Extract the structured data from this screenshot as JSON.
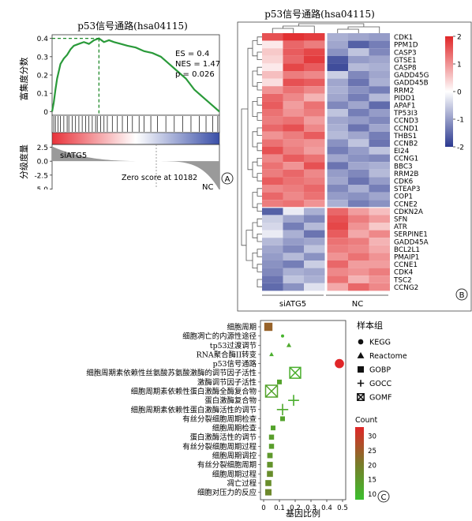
{
  "chart_data": [
    {
      "type": "line",
      "panel_label": "A",
      "title": "p53信号通路(hsa04115)",
      "ylabel_top": "富集度分数",
      "ylabel_bottom": "分级度量",
      "y_ticks_top": [
        "0.4",
        "0.3",
        "0.2",
        "0.1",
        "0"
      ],
      "y_ticks_bottom": [
        "2.5",
        "0.0",
        "-2.5",
        "-5.0"
      ],
      "ylim_top": [
        -0.02,
        0.42
      ],
      "ylim_bottom": [
        -5.5,
        3
      ],
      "stats": {
        "es": "ES = 0.4",
        "nes": "NES = 1.47",
        "p": "p = 0.026"
      },
      "group_left": "siATG5",
      "group_right": "NC",
      "zero_score_label": "Zero score at 10182",
      "colors": {
        "curve": "#2a9a3a",
        "peak": "#1f8a2a",
        "red": "#e8323a",
        "blue": "#3a4fa8"
      },
      "running_es": [
        [
          0,
          0
        ],
        [
          0.01,
          0.05
        ],
        [
          0.02,
          0.12
        ],
        [
          0.03,
          0.18
        ],
        [
          0.04,
          0.22
        ],
        [
          0.05,
          0.26
        ],
        [
          0.07,
          0.29
        ],
        [
          0.09,
          0.31
        ],
        [
          0.11,
          0.34
        ],
        [
          0.13,
          0.36
        ],
        [
          0.16,
          0.37
        ],
        [
          0.19,
          0.38
        ],
        [
          0.22,
          0.37
        ],
        [
          0.25,
          0.39
        ],
        [
          0.28,
          0.4
        ],
        [
          0.31,
          0.38
        ],
        [
          0.34,
          0.39
        ],
        [
          0.37,
          0.38
        ],
        [
          0.41,
          0.37
        ],
        [
          0.45,
          0.36
        ],
        [
          0.5,
          0.35
        ],
        [
          0.55,
          0.33
        ],
        [
          0.6,
          0.32
        ],
        [
          0.65,
          0.3
        ],
        [
          0.7,
          0.26
        ],
        [
          0.75,
          0.22
        ],
        [
          0.8,
          0.18
        ],
        [
          0.85,
          0.12
        ],
        [
          0.9,
          0.08
        ],
        [
          0.95,
          0.04
        ],
        [
          1.0,
          0.0
        ]
      ],
      "peak_x": 0.28,
      "hits": [
        0.01,
        0.02,
        0.035,
        0.05,
        0.07,
        0.09,
        0.1,
        0.12,
        0.14,
        0.16,
        0.18,
        0.2,
        0.22,
        0.24,
        0.26,
        0.27,
        0.29,
        0.31,
        0.33,
        0.36,
        0.39,
        0.42,
        0.45,
        0.48,
        0.52,
        0.55,
        0.59,
        0.63,
        0.68,
        0.73,
        0.78,
        0.83,
        0.88,
        0.92,
        0.96,
        0.99
      ]
    },
    {
      "type": "heatmap",
      "panel_label": "B",
      "title": "p53信号通路(hsa04115)",
      "columns_group": [
        "siATG5",
        "NC"
      ],
      "legend_ticks": [
        "2",
        "1",
        "0",
        "-1",
        "-2"
      ],
      "rows": [
        "CDK1",
        "PPM1D",
        "CASP3",
        "GTSE1",
        "CASP8",
        "GADD45G",
        "GADD45B",
        "RRM2",
        "PIDD1",
        "APAF1",
        "TP53I3",
        "CCND3",
        "CCND1",
        "THBS1",
        "CCNB2",
        "EI24",
        "CCNG1",
        "BBC3",
        "RRM2B",
        "CDK6",
        "STEAP3",
        "COP1",
        "CCNE2",
        "CDKN2A",
        "SFN",
        "ATR",
        "SERPINE1",
        "GADD45A",
        "BCL2L1",
        "PMAIP1",
        "CCNE1",
        "CDK4",
        "TSC2",
        "CCNG2"
      ],
      "values": [
        [
          1.6,
          1.9,
          1.8,
          -0.8,
          -0.9,
          -1.0
        ],
        [
          0.2,
          1.4,
          1.2,
          -0.9,
          -1.6,
          -1.3
        ],
        [
          0.5,
          1.5,
          1.7,
          -1.1,
          -0.6,
          -1.2
        ],
        [
          0.4,
          1.4,
          1.8,
          -1.7,
          -1.0,
          -0.9
        ],
        [
          0.2,
          1.7,
          1.5,
          -1.8,
          -0.7,
          -0.8
        ],
        [
          0.6,
          1.2,
          1.1,
          -0.5,
          -1.2,
          -0.9
        ],
        [
          0.3,
          1.6,
          1.5,
          -0.9,
          -1.4,
          -0.8
        ],
        [
          1.0,
          1.3,
          1.1,
          -0.8,
          -1.1,
          -1.3
        ],
        [
          1.4,
          1.1,
          0.7,
          -0.9,
          -1.3,
          -0.7
        ],
        [
          1.5,
          0.9,
          1.3,
          -1.2,
          -0.9,
          -1.5
        ],
        [
          1.3,
          1.0,
          1.2,
          -0.6,
          -1.3,
          -1.0
        ],
        [
          1.2,
          1.3,
          0.9,
          -0.9,
          -1.0,
          -1.2
        ],
        [
          1.4,
          1.6,
          1.1,
          -0.8,
          -1.4,
          -0.9
        ],
        [
          1.0,
          1.2,
          1.5,
          -0.7,
          -0.9,
          -1.3
        ],
        [
          1.3,
          1.1,
          1.0,
          -1.1,
          -0.6,
          -1.4
        ],
        [
          1.6,
          1.2,
          0.9,
          -1.3,
          -1.0,
          -0.6
        ],
        [
          1.1,
          1.5,
          1.3,
          -0.9,
          -1.1,
          -1.2
        ],
        [
          1.3,
          1.0,
          1.6,
          -1.4,
          -0.9,
          -0.8
        ],
        [
          1.2,
          1.4,
          1.1,
          -1.0,
          -1.2,
          -0.7
        ],
        [
          1.5,
          1.3,
          1.2,
          -0.9,
          -1.4,
          -1.0
        ],
        [
          1.1,
          1.2,
          1.4,
          -1.2,
          -0.8,
          -1.3
        ],
        [
          1.4,
          1.1,
          1.3,
          -1.0,
          -1.1,
          -0.9
        ],
        [
          1.2,
          1.3,
          1.0,
          -0.8,
          -1.3,
          -1.1
        ],
        [
          -1.6,
          -0.2,
          -0.8,
          1.4,
          0.9,
          0.6
        ],
        [
          -0.5,
          -0.9,
          -1.2,
          1.6,
          1.2,
          0.9
        ],
        [
          -0.4,
          -1.3,
          -0.7,
          1.7,
          1.0,
          0.5
        ],
        [
          -0.2,
          -0.8,
          -1.4,
          1.5,
          0.8,
          1.1
        ],
        [
          -0.7,
          -1.0,
          -0.9,
          1.3,
          1.2,
          0.7
        ],
        [
          -0.9,
          -1.2,
          -0.6,
          1.2,
          1.1,
          0.8
        ],
        [
          -1.0,
          -0.7,
          -1.1,
          1.0,
          1.3,
          1.0
        ],
        [
          -1.1,
          -1.3,
          -0.5,
          1.4,
          0.9,
          0.9
        ],
        [
          -1.2,
          -0.8,
          -0.9,
          1.1,
          1.0,
          1.2
        ],
        [
          -1.4,
          -0.6,
          -0.8,
          1.3,
          0.7,
          1.0
        ],
        [
          -1.5,
          -1.1,
          -0.3,
          0.8,
          1.4,
          1.1
        ]
      ],
      "colors": {
        "high": "#e02628",
        "mid": "#ffffff",
        "low": "#2b3990"
      }
    },
    {
      "type": "scatter",
      "panel_label": "C",
      "xlabel": "基因比例",
      "x_ticks": [
        "0",
        "0.1",
        "0.2",
        "0.3",
        "0.4",
        "0.5"
      ],
      "xlim": [
        -0.02,
        0.52
      ],
      "categories": [
        "细胞周期",
        "细胞凋亡的内源性途径",
        "tp53过渡调节",
        "RNA聚合酶II转变",
        "p53信号通路",
        "细胞周期素依赖性丝氨酸苏氨酸激酶的调节因子活性",
        "激酶调节因子活性",
        "细胞周期素依赖性蛋白激酶全酶复合物",
        "蛋白激酶复合物",
        "细胞周期素依赖性蛋白激酶活性的调节",
        "有丝分裂细胞周期检查",
        "细胞周期检查",
        "蛋白激酶活性的调节",
        "有丝分裂细胞周期过程",
        "细胞周期调控",
        "有丝分裂细胞周期",
        "细胞周期过程",
        "凋亡过程",
        "细胞对压力的反应"
      ],
      "points": [
        {
          "category": "细胞周期",
          "x": 0.03,
          "count": 24,
          "source": "GOBP"
        },
        {
          "category": "细胞凋亡的内源性途径",
          "x": 0.12,
          "count": 10,
          "source": "KEGG"
        },
        {
          "category": "tp53过渡调节",
          "x": 0.16,
          "count": 12,
          "source": "Reactome"
        },
        {
          "category": "RNA聚合酶II转变",
          "x": 0.05,
          "count": 11,
          "source": "Reactome"
        },
        {
          "category": "p53信号通路",
          "x": 0.48,
          "count": 33,
          "source": "KEGG"
        },
        {
          "category": "细胞周期素依赖性丝氨酸苏氨酸激酶的调节因子活性",
          "x": 0.2,
          "count": 11,
          "source": "GOMF"
        },
        {
          "category": "激酶调节因子活性",
          "x": 0.1,
          "count": 13,
          "source": "GOBP"
        },
        {
          "category": "细胞周期素依赖性蛋白激酶全酶复合物",
          "x": 0.05,
          "count": 13,
          "source": "GOMF"
        },
        {
          "category": "蛋白激酶复合物",
          "x": 0.19,
          "count": 11,
          "source": "GOCC"
        },
        {
          "category": "细胞周期素依赖性蛋白激酶活性的调节",
          "x": 0.12,
          "count": 12,
          "source": "GOCC"
        },
        {
          "category": "有丝分裂细胞周期检查",
          "x": 0.12,
          "count": 13,
          "source": "GOBP"
        },
        {
          "category": "细胞周期检查",
          "x": 0.06,
          "count": 13,
          "source": "GOBP"
        },
        {
          "category": "蛋白激酶活性的调节",
          "x": 0.05,
          "count": 14,
          "source": "GOBP"
        },
        {
          "category": "有丝分裂细胞周期过程",
          "x": 0.05,
          "count": 14,
          "source": "GOBP"
        },
        {
          "category": "细胞周期调控",
          "x": 0.04,
          "count": 15,
          "source": "GOBP"
        },
        {
          "category": "有丝分裂细胞周期",
          "x": 0.04,
          "count": 16,
          "source": "GOBP"
        },
        {
          "category": "细胞周期过程",
          "x": 0.04,
          "count": 17,
          "source": "GOBP"
        },
        {
          "category": "凋亡过程",
          "x": 0.03,
          "count": 17,
          "source": "GOBP"
        },
        {
          "category": "细胞对压力的反应",
          "x": 0.03,
          "count": 18,
          "source": "GOBP"
        }
      ],
      "legend_title": "样本组",
      "legend_items": [
        {
          "label": "KEGG",
          "shape": "circle"
        },
        {
          "label": "Reactome",
          "shape": "triangle"
        },
        {
          "label": "GOBP",
          "shape": "square"
        },
        {
          "label": "GOCC",
          "shape": "plus"
        },
        {
          "label": "GOMF",
          "shape": "boxx"
        }
      ],
      "count_legend_title": "Count",
      "count_ticks": [
        "30",
        "25",
        "20",
        "15",
        "10"
      ],
      "count_range": [
        8,
        33
      ],
      "colors": {
        "count_high": "#e02628",
        "count_low": "#3bbf2e"
      }
    }
  ]
}
